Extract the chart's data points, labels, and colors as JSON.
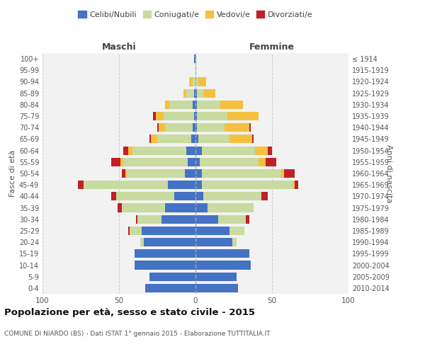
{
  "age_groups": [
    "0-4",
    "5-9",
    "10-14",
    "15-19",
    "20-24",
    "25-29",
    "30-34",
    "35-39",
    "40-44",
    "45-49",
    "50-54",
    "55-59",
    "60-64",
    "65-69",
    "70-74",
    "75-79",
    "80-84",
    "85-89",
    "90-94",
    "95-99",
    "100+"
  ],
  "birth_years": [
    "2010-2014",
    "2005-2009",
    "2000-2004",
    "1995-1999",
    "1990-1994",
    "1985-1989",
    "1980-1984",
    "1975-1979",
    "1970-1974",
    "1965-1969",
    "1960-1964",
    "1955-1959",
    "1950-1954",
    "1945-1949",
    "1940-1944",
    "1935-1939",
    "1930-1934",
    "1925-1929",
    "1920-1924",
    "1915-1919",
    "≤ 1914"
  ],
  "maschi": {
    "celibi": [
      33,
      30,
      40,
      40,
      34,
      35,
      22,
      20,
      14,
      18,
      7,
      5,
      6,
      3,
      2,
      1,
      2,
      1,
      0,
      0,
      1
    ],
    "coniugati": [
      0,
      0,
      0,
      0,
      2,
      8,
      16,
      28,
      38,
      55,
      38,
      42,
      35,
      22,
      18,
      20,
      15,
      5,
      2,
      0,
      0
    ],
    "vedovi": [
      0,
      0,
      0,
      0,
      0,
      0,
      0,
      0,
      0,
      0,
      1,
      2,
      3,
      4,
      4,
      5,
      3,
      2,
      2,
      0,
      0
    ],
    "divorziati": [
      0,
      0,
      0,
      0,
      0,
      1,
      1,
      3,
      3,
      4,
      2,
      6,
      3,
      1,
      1,
      2,
      0,
      0,
      0,
      0,
      0
    ]
  },
  "femmine": {
    "nubili": [
      28,
      27,
      36,
      35,
      24,
      22,
      15,
      8,
      5,
      4,
      4,
      3,
      4,
      2,
      1,
      1,
      1,
      1,
      0,
      0,
      0
    ],
    "coniugate": [
      0,
      0,
      0,
      0,
      3,
      10,
      18,
      30,
      38,
      60,
      52,
      38,
      35,
      20,
      18,
      20,
      15,
      4,
      2,
      0,
      0
    ],
    "vedove": [
      0,
      0,
      0,
      0,
      0,
      0,
      0,
      0,
      0,
      1,
      2,
      5,
      8,
      15,
      16,
      20,
      15,
      8,
      5,
      0,
      0
    ],
    "divorziate": [
      0,
      0,
      0,
      0,
      0,
      0,
      2,
      0,
      4,
      2,
      7,
      7,
      3,
      1,
      1,
      0,
      0,
      0,
      0,
      0,
      0
    ]
  },
  "colors": {
    "celibi": "#4472c4",
    "coniugati": "#c8dba0",
    "vedovi": "#f5c040",
    "divorziati": "#c0202a"
  },
  "legend_labels": [
    "Celibi/Nubili",
    "Coniugati/e",
    "Vedovi/e",
    "Divorziati/e"
  ],
  "title": "Popolazione per età, sesso e stato civile - 2015",
  "subtitle": "COMUNE DI NIARDO (BS) - Dati ISTAT 1° gennaio 2015 - Elaborazione TUTTITALIA.IT",
  "xlabel_left": "Maschi",
  "xlabel_right": "Femmine",
  "ylabel_left": "Fasce di età",
  "ylabel_right": "Anni di nascita",
  "xlim": 100,
  "bg_color": "#ffffff",
  "plot_bg_color": "#f2f2f2"
}
